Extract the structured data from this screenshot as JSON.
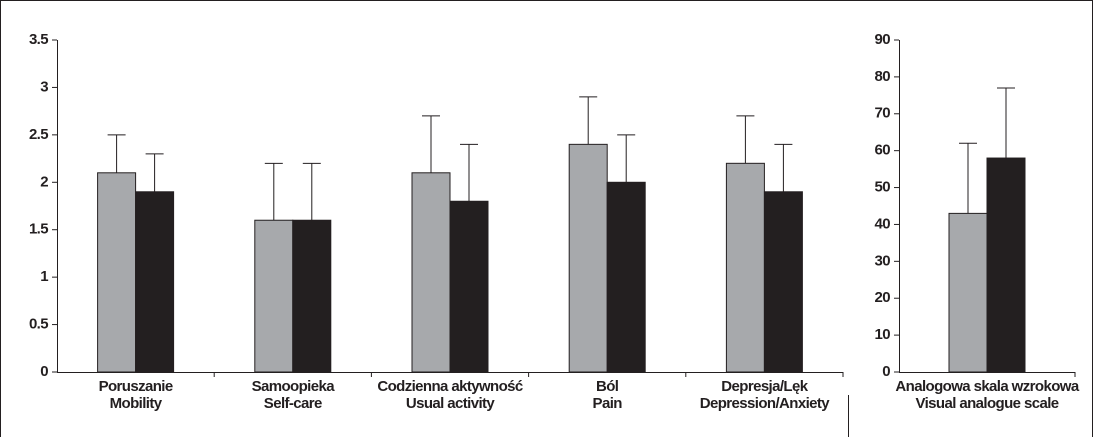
{
  "chart_data": [
    {
      "type": "bar",
      "categories": [
        [
          "Poruszanie",
          "Mobility"
        ],
        [
          "Samoopieka",
          "Self-care"
        ],
        [
          "Codzienna aktywność",
          "Usual activity"
        ],
        [
          "Ból",
          "Pain"
        ],
        [
          "Depresja/Lęk",
          "Depression/Anxiety"
        ]
      ],
      "series": [
        {
          "color": "#a7a9ac",
          "values": [
            2.1,
            1.6,
            2.1,
            2.4,
            2.2
          ],
          "errors": [
            0.4,
            0.6,
            0.6,
            0.5,
            0.5
          ]
        },
        {
          "color": "#231f20",
          "values": [
            1.9,
            1.6,
            1.8,
            2.0,
            1.9
          ],
          "errors": [
            0.4,
            0.6,
            0.6,
            0.5,
            0.5
          ]
        }
      ],
      "ylim": [
        0,
        3.5
      ],
      "yticks": [
        0,
        0.5,
        1,
        1.5,
        2,
        2.5,
        3,
        3.5
      ]
    },
    {
      "type": "bar",
      "categories": [
        [
          "Analogowa skala wzrokowa",
          "Visual analogue scale"
        ]
      ],
      "series": [
        {
          "color": "#a7a9ac",
          "values": [
            43
          ],
          "errors": [
            19
          ]
        },
        {
          "color": "#231f20",
          "values": [
            58
          ],
          "errors": [
            19
          ]
        }
      ],
      "ylim": [
        0,
        90
      ],
      "yticks": [
        0,
        10,
        20,
        30,
        40,
        50,
        60,
        70,
        80,
        90
      ]
    }
  ]
}
